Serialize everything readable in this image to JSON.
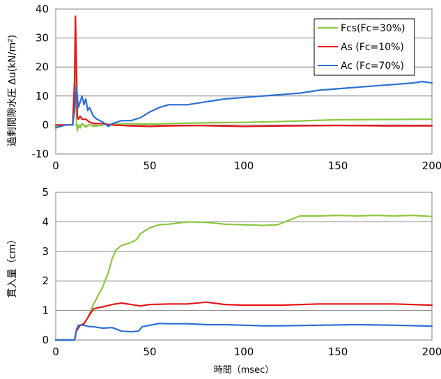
{
  "colors": {
    "green": "#8cc63f",
    "red": "#e8131a",
    "blue": "#2a6fd4"
  },
  "chart_data": [
    {
      "type": "line",
      "title": "",
      "xlabel": "",
      "ylabel": "過剰間隙水圧 Δu(kN/m²)",
      "xlim": [
        0,
        200
      ],
      "ylim": [
        -10,
        40
      ],
      "xticks": [
        "0",
        "50",
        "100",
        "150",
        "200"
      ],
      "yticks": [
        "-10",
        "0",
        "10",
        "20",
        "30",
        "40"
      ],
      "grid": "horizontal",
      "legend_position": "top-right",
      "series": [
        {
          "name": "Fcs(Fc=30%)",
          "color": "#8cc63f",
          "x": [
            0,
            5,
            9,
            10,
            10.5,
            11,
            11.5,
            12,
            13,
            14,
            16,
            18,
            20,
            25,
            30,
            40,
            50,
            60,
            75,
            100,
            125,
            150,
            175,
            200
          ],
          "y": [
            -0.5,
            0,
            0,
            10,
            36,
            1,
            -2,
            0,
            -1,
            0.5,
            -0.8,
            0.2,
            -0.5,
            0,
            0.3,
            0.5,
            0.3,
            0.5,
            0.7,
            0.9,
            1.3,
            1.8,
            1.9,
            2.0
          ]
        },
        {
          "name": "As (Fc=10%)",
          "color": "#e8131a",
          "x": [
            0,
            5,
            9,
            10,
            10.5,
            11,
            11.5,
            12,
            13,
            14,
            16,
            18,
            20,
            25,
            30,
            40,
            50,
            60,
            75,
            100,
            125,
            150,
            175,
            200
          ],
          "y": [
            0,
            0,
            0,
            15,
            37.5,
            20,
            3,
            2,
            3,
            2,
            2,
            1,
            0.5,
            0.5,
            0,
            -0.3,
            -0.5,
            -0.3,
            -0.2,
            -0.5,
            -0.3,
            -0.2,
            -0.3,
            -0.3
          ]
        },
        {
          "name": "Ac (Fc=70%)",
          "color": "#2a6fd4",
          "x": [
            0,
            5,
            9,
            10,
            11,
            12,
            13,
            14,
            15,
            16,
            17,
            18,
            20,
            22,
            25,
            28,
            30,
            35,
            40,
            45,
            50,
            55,
            60,
            70,
            80,
            90,
            100,
            110,
            120,
            130,
            140,
            150,
            160,
            170,
            180,
            190,
            195,
            200
          ],
          "y": [
            -1,
            0,
            0,
            5,
            13.5,
            6,
            8,
            10,
            7,
            9,
            5,
            6,
            3,
            2,
            1,
            -0.5,
            0.5,
            1.5,
            1.5,
            2.5,
            4.5,
            6,
            7,
            7,
            8,
            9,
            9.5,
            10,
            10.5,
            11,
            12,
            12.5,
            13,
            13.5,
            14,
            14.5,
            15,
            14.5
          ]
        }
      ]
    },
    {
      "type": "line",
      "title": "",
      "xlabel": "時間（msec）",
      "ylabel": "貫入量（cm）",
      "xlim": [
        0,
        200
      ],
      "ylim": [
        0,
        5
      ],
      "xticks": [
        "0",
        "50",
        "100",
        "150",
        "200"
      ],
      "yticks": [
        "0",
        "1",
        "2",
        "3",
        "4",
        "5"
      ],
      "grid": "horizontal",
      "series": [
        {
          "name": "Fcs(Fc=30%)",
          "color": "#8cc63f",
          "x": [
            0,
            10,
            11,
            13,
            15,
            17,
            20,
            25,
            28,
            30,
            32,
            35,
            40,
            43,
            45,
            50,
            55,
            60,
            70,
            80,
            90,
            100,
            110,
            118,
            125,
            130,
            140,
            150,
            160,
            170,
            180,
            190,
            200
          ],
          "y": [
            0,
            0,
            0.3,
            0.5,
            0.55,
            0.75,
            1.2,
            1.8,
            2.3,
            2.75,
            3.05,
            3.2,
            3.3,
            3.4,
            3.6,
            3.8,
            3.9,
            3.92,
            4.0,
            3.98,
            3.92,
            3.9,
            3.88,
            3.9,
            4.08,
            4.2,
            4.2,
            4.22,
            4.2,
            4.22,
            4.2,
            4.22,
            4.18
          ]
        },
        {
          "name": "As (Fc=10%)",
          "color": "#e8131a",
          "x": [
            0,
            10,
            11,
            13,
            15,
            17,
            20,
            23,
            25,
            30,
            35,
            40,
            45,
            50,
            60,
            70,
            80,
            90,
            100,
            120,
            140,
            160,
            180,
            200
          ],
          "y": [
            0,
            0,
            0.3,
            0.5,
            0.55,
            0.75,
            1.05,
            1.1,
            1.12,
            1.2,
            1.25,
            1.2,
            1.15,
            1.2,
            1.22,
            1.22,
            1.28,
            1.2,
            1.18,
            1.18,
            1.22,
            1.22,
            1.22,
            1.18
          ]
        },
        {
          "name": "Ac (Fc=70%)",
          "color": "#2a6fd4",
          "x": [
            0,
            10,
            11,
            12,
            13,
            15,
            18,
            20,
            25,
            30,
            35,
            40,
            44,
            46,
            50,
            55,
            60,
            70,
            80,
            90,
            100,
            110,
            120,
            140,
            160,
            180,
            200
          ],
          "y": [
            0,
            0,
            0.35,
            0.5,
            0.5,
            0.5,
            0.45,
            0.45,
            0.4,
            0.42,
            0.3,
            0.28,
            0.3,
            0.45,
            0.5,
            0.56,
            0.55,
            0.55,
            0.52,
            0.52,
            0.5,
            0.48,
            0.48,
            0.5,
            0.52,
            0.5,
            0.47
          ]
        }
      ]
    }
  ]
}
